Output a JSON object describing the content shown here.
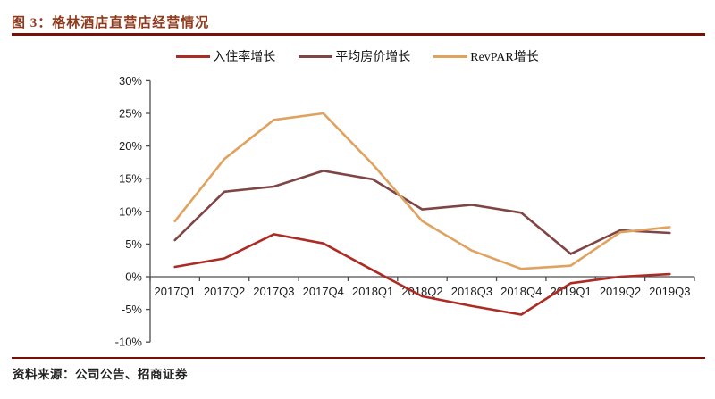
{
  "page": {
    "title": "图 3：格林酒店直营店经营情况",
    "source": "资料来源：公司公告、招商证券"
  },
  "colors": {
    "title_text": "#8E3A1C",
    "rule_line": "#7A0F08",
    "axis_line": "#4D4D4D",
    "tick_label": "#1A1A1A"
  },
  "chart_data": {
    "type": "line",
    "title": "格林酒店直营店经营情况",
    "xlabel": "",
    "ylabel": "",
    "grid": false,
    "legend_position": "top-center",
    "ylim": [
      -10,
      30
    ],
    "ytick_step": 5,
    "ytick_labels": [
      "30%",
      "25%",
      "20%",
      "15%",
      "10%",
      "5%",
      "0%",
      "-5%",
      "-10%"
    ],
    "categories": [
      "2017Q1",
      "2017Q2",
      "2017Q3",
      "2017Q4",
      "2018Q1",
      "2018Q2",
      "2018Q3",
      "2018Q4",
      "2019Q1",
      "2019Q2",
      "2019Q3"
    ],
    "series": [
      {
        "key": "occupancy-rate-growth",
        "name": "入住率增长",
        "color": "#AC2B24",
        "values": [
          1.5,
          2.8,
          6.5,
          5.1,
          1.0,
          -3.0,
          -4.5,
          -5.8,
          -1.0,
          0.0,
          0.4
        ]
      },
      {
        "key": "adr-growth",
        "name": "平均房价增长",
        "color": "#7F4545",
        "values": [
          5.6,
          13.0,
          13.8,
          16.2,
          14.9,
          10.3,
          11.0,
          9.8,
          3.5,
          7.1,
          6.7
        ]
      },
      {
        "key": "revpar-growth",
        "name": "RevPAR增长",
        "color": "#DFA35F",
        "values": [
          8.5,
          18.0,
          24.0,
          25.0,
          17.2,
          8.5,
          4.0,
          1.2,
          1.7,
          6.8,
          7.6
        ]
      }
    ]
  }
}
